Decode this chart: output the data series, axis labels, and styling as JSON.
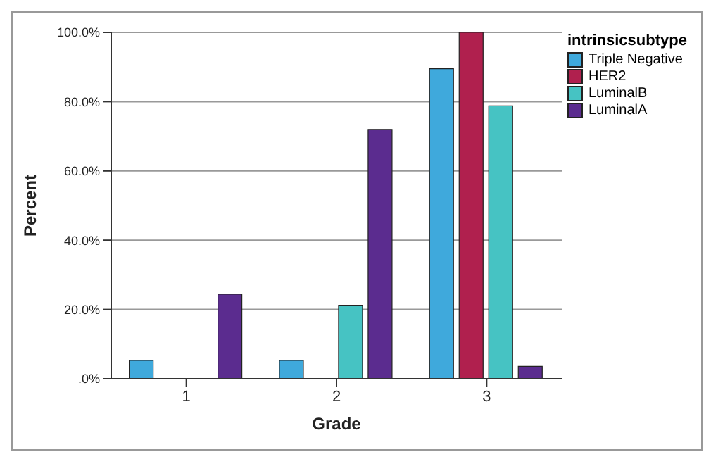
{
  "chart_data": {
    "type": "bar",
    "xlabel": "Grade",
    "ylabel": "Percent",
    "legend_title": "intrinsicsubtype",
    "categories": [
      "1",
      "2",
      "3"
    ],
    "series": [
      {
        "name": "Triple Negative",
        "color": "#3fa9dc",
        "values": [
          5.3,
          5.3,
          89.5
        ]
      },
      {
        "name": "HER2",
        "color": "#b0204e",
        "values": [
          0,
          0,
          100
        ]
      },
      {
        "name": "LuminalB",
        "color": "#46c3c3",
        "values": [
          0,
          21.2,
          78.8
        ]
      },
      {
        "name": "LuminalA",
        "color": "#5b2c8f",
        "values": [
          24.4,
          72.0,
          3.6
        ]
      }
    ],
    "ylim": [
      0,
      100
    ],
    "yticks": [
      {
        "value": 0,
        "label": ".0%"
      },
      {
        "value": 20,
        "label": "20.0%"
      },
      {
        "value": 40,
        "label": "40.0%"
      },
      {
        "value": 60,
        "label": "60.0%"
      },
      {
        "value": 80,
        "label": "80.0%"
      },
      {
        "value": 100,
        "label": "100.0%"
      }
    ],
    "grid": "y",
    "legend": "top right"
  }
}
